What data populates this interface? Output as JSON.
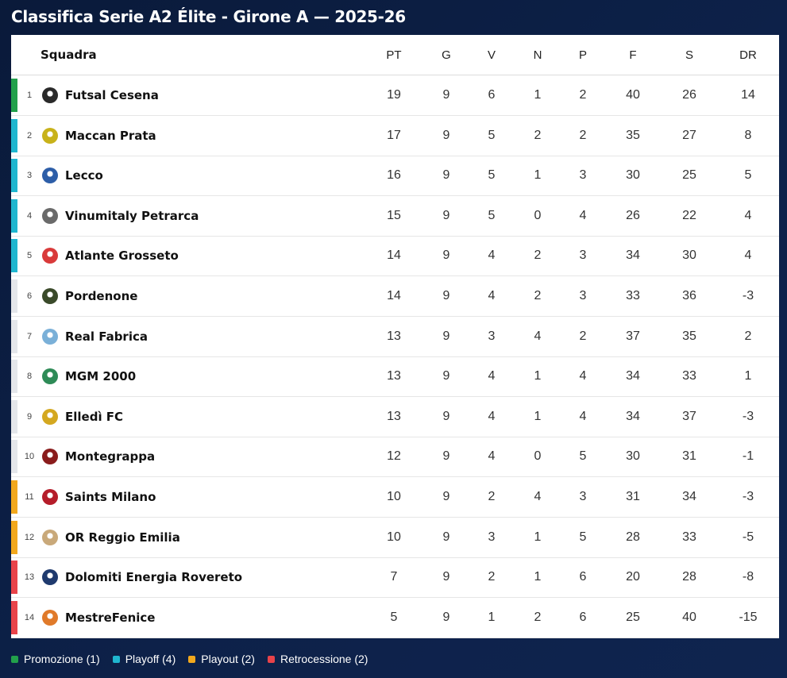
{
  "title": "Classifica Serie A2 Élite - Girone A — 2025-26",
  "columns": {
    "team": "Squadra",
    "pt": "PT",
    "g": "G",
    "v": "V",
    "n": "N",
    "p": "P",
    "f": "F",
    "s": "S",
    "dr": "DR"
  },
  "colors": {
    "promo": "#22a04b",
    "playoff": "#1fb6cf",
    "playout": "#f2a81d",
    "retro": "#e8434a",
    "none": "#e4e6ea"
  },
  "rows": [
    {
      "pos": "1",
      "team": "Futsal Cesena",
      "pt": "19",
      "g": "9",
      "v": "6",
      "n": "1",
      "p": "2",
      "f": "40",
      "s": "26",
      "dr": "14",
      "zone": "promo",
      "logo": "#2a2a2a"
    },
    {
      "pos": "2",
      "team": "Maccan Prata",
      "pt": "17",
      "g": "9",
      "v": "5",
      "n": "2",
      "p": "2",
      "f": "35",
      "s": "27",
      "dr": "8",
      "zone": "playoff",
      "logo": "#c8b21a"
    },
    {
      "pos": "3",
      "team": "Lecco",
      "pt": "16",
      "g": "9",
      "v": "5",
      "n": "1",
      "p": "3",
      "f": "30",
      "s": "25",
      "dr": "5",
      "zone": "playoff",
      "logo": "#2d5ea8"
    },
    {
      "pos": "4",
      "team": "Vinumitaly Petrarca",
      "pt": "15",
      "g": "9",
      "v": "5",
      "n": "0",
      "p": "4",
      "f": "26",
      "s": "22",
      "dr": "4",
      "zone": "playoff",
      "logo": "#6a6a6a"
    },
    {
      "pos": "5",
      "team": "Atlante Grosseto",
      "pt": "14",
      "g": "9",
      "v": "4",
      "n": "2",
      "p": "3",
      "f": "34",
      "s": "30",
      "dr": "4",
      "zone": "playoff",
      "logo": "#d93a3a"
    },
    {
      "pos": "6",
      "team": "Pordenone",
      "pt": "14",
      "g": "9",
      "v": "4",
      "n": "2",
      "p": "3",
      "f": "33",
      "s": "36",
      "dr": "-3",
      "zone": "none",
      "logo": "#3a4a2a"
    },
    {
      "pos": "7",
      "team": "Real Fabrica",
      "pt": "13",
      "g": "9",
      "v": "3",
      "n": "4",
      "p": "2",
      "f": "37",
      "s": "35",
      "dr": "2",
      "zone": "none",
      "logo": "#7ab0d8"
    },
    {
      "pos": "8",
      "team": "MGM 2000",
      "pt": "13",
      "g": "9",
      "v": "4",
      "n": "1",
      "p": "4",
      "f": "34",
      "s": "33",
      "dr": "1",
      "zone": "none",
      "logo": "#2e8b57"
    },
    {
      "pos": "9",
      "team": "Elledì FC",
      "pt": "13",
      "g": "9",
      "v": "4",
      "n": "1",
      "p": "4",
      "f": "34",
      "s": "37",
      "dr": "-3",
      "zone": "none",
      "logo": "#d4a820"
    },
    {
      "pos": "10",
      "team": "Montegrappa",
      "pt": "12",
      "g": "9",
      "v": "4",
      "n": "0",
      "p": "5",
      "f": "30",
      "s": "31",
      "dr": "-1",
      "zone": "none",
      "logo": "#8a1c1c"
    },
    {
      "pos": "11",
      "team": "Saints Milano",
      "pt": "10",
      "g": "9",
      "v": "2",
      "n": "4",
      "p": "3",
      "f": "31",
      "s": "34",
      "dr": "-3",
      "zone": "playout",
      "logo": "#b51d2a"
    },
    {
      "pos": "12",
      "team": "OR Reggio Emilia",
      "pt": "10",
      "g": "9",
      "v": "3",
      "n": "1",
      "p": "5",
      "f": "28",
      "s": "33",
      "dr": "-5",
      "zone": "playout",
      "logo": "#c9a97a"
    },
    {
      "pos": "13",
      "team": "Dolomiti Energia Rovereto",
      "pt": "7",
      "g": "9",
      "v": "2",
      "n": "1",
      "p": "6",
      "f": "20",
      "s": "28",
      "dr": "-8",
      "zone": "retro",
      "logo": "#1f3a6e"
    },
    {
      "pos": "14",
      "team": "MestreFenice",
      "pt": "5",
      "g": "9",
      "v": "1",
      "n": "2",
      "p": "6",
      "f": "25",
      "s": "40",
      "dr": "-15",
      "zone": "retro",
      "logo": "#e07a2a"
    }
  ],
  "legend": [
    {
      "label": "Promozione (1)",
      "zone": "promo"
    },
    {
      "label": "Playoff (4)",
      "zone": "playoff"
    },
    {
      "label": "Playout (2)",
      "zone": "playout"
    },
    {
      "label": "Retrocessione (2)",
      "zone": "retro"
    }
  ]
}
